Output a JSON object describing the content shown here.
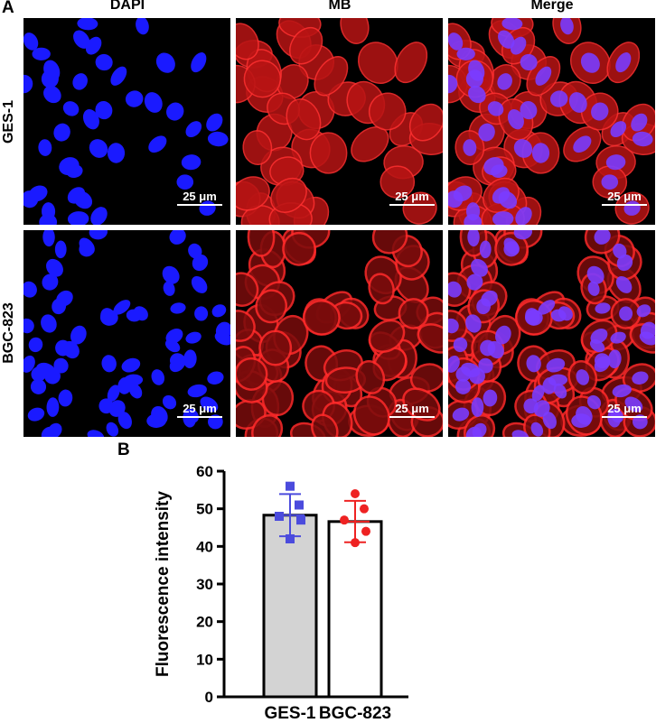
{
  "panel_a": {
    "letter": "A",
    "columns": [
      "DAPI",
      "MB",
      "Merge"
    ],
    "rows": [
      "GES-1",
      "BGC-823"
    ],
    "scale_bar_label": "25 μm",
    "colors": {
      "nucleus": "#1a1aff",
      "membrane": "#e01010",
      "background": "#000000"
    }
  },
  "panel_b": {
    "letter": "B"
  },
  "chart_data": {
    "type": "bar",
    "categories": [
      "GES-1",
      "BGC-823"
    ],
    "values": [
      48.3,
      46.6
    ],
    "error": [
      5.6,
      5.5
    ],
    "bar_colors": [
      "#d3d3d3",
      "#ffffff"
    ],
    "ylabel": "Fluorescence intensity",
    "ylim": [
      0,
      60
    ],
    "yticks": [
      0,
      10,
      20,
      30,
      40,
      50,
      60
    ],
    "points": [
      {
        "category": "GES-1",
        "color": "#4b4bdd",
        "marker": "square",
        "y": [
          56,
          51,
          48,
          47,
          42
        ]
      },
      {
        "category": "BGC-823",
        "color": "#ee2222",
        "marker": "circle",
        "y": [
          54,
          50,
          47,
          44,
          41
        ]
      }
    ],
    "grid": false
  }
}
